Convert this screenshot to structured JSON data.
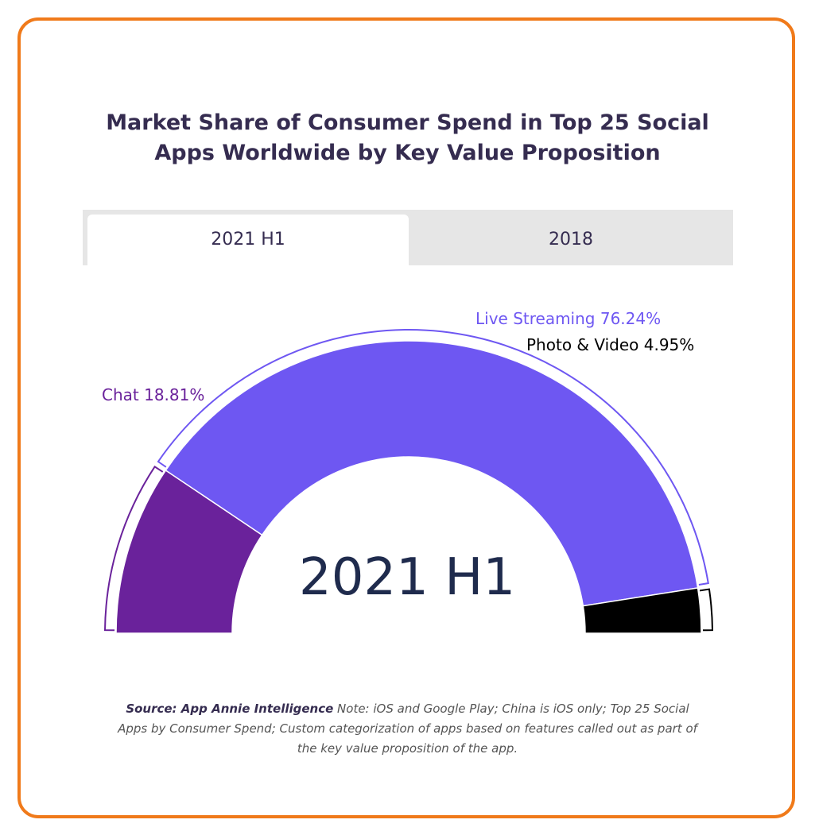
{
  "title_lines": [
    "Market Share of Consumer Spend in Top 25 Social",
    "Apps Worldwide by Key Value Proposition"
  ],
  "tabs": [
    {
      "label": "2021 H1",
      "active": true
    },
    {
      "label": "2018",
      "active": false
    }
  ],
  "chart_data": {
    "type": "pie",
    "variant": "semi-donut",
    "center_label": "2021 H1",
    "series": [
      {
        "name": "Chat",
        "value": 18.81,
        "label": "Chat 18.81%",
        "color": "#6a229b"
      },
      {
        "name": "Live Streaming",
        "value": 76.24,
        "label": "Live Streaming 76.24%",
        "color": "#6e57f2"
      },
      {
        "name": "Photo & Video",
        "value": 4.95,
        "label": "Photo & Video 4.95%",
        "color": "#000000"
      }
    ]
  },
  "source": {
    "bold": "Source: App Annie Intelligence",
    "text": " Note: iOS and Google Play; China is iOS only; Top 25 Social Apps by Consumer Spend; Custom categorization of apps based on features called out as part of the key value proposition of the app."
  },
  "colors": {
    "frame": "#f07a1a",
    "title": "#352c50",
    "label_text_dark": "#000000"
  }
}
